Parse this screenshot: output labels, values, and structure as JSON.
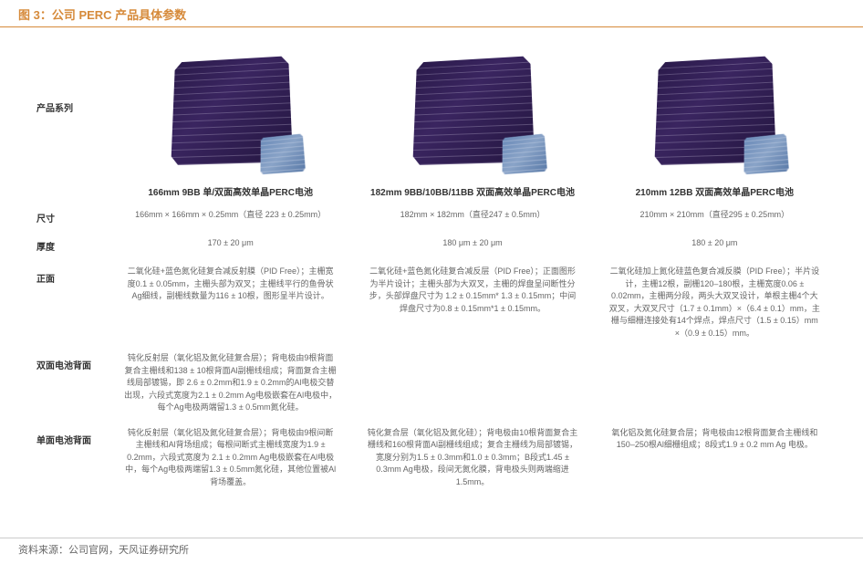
{
  "header": {
    "title": "图 3：公司 PERC 产品具体参数"
  },
  "labels": {
    "series": "产品系列",
    "size": "尺寸",
    "thickness": "厚度",
    "front": "正面",
    "bifacial_back": "双面电池背面",
    "mono_back": "单面电池背面"
  },
  "products": [
    {
      "name": "166mm 9BB 单/双面高效单晶PERC电池",
      "size": "166mm × 166mm × 0.25mm（直径 223 ± 0.25mm）",
      "thickness": "170 ± 20 μm",
      "front": "二氧化硅+蓝色氮化硅复合减反射膜（PID Free）；主栅宽度0.1 ± 0.05mm，主栅头部为双叉；主栅线平行的鱼骨状Ag细线，副栅线数量为116 ± 10根，图形呈半片设计。",
      "bifacial_back": "钝化反射层（氧化铝及氮化硅复合层）；背电极由9根背面复合主栅线和138 ± 10根背面Al副栅线组成；背面复合主栅线局部镀锡，即 2.6 ± 0.2mm和1.9 ± 0.2mm的Al电极交替出现，六段式宽度为2.1 ± 0.2mm Ag电极嵌套在Al电极中，每个Ag电极两端留1.3 ± 0.5mm氮化硅。",
      "mono_back": "钝化反射层（氧化铝及氮化硅复合层）；背电极由9根间断主栅线和Al背场组成；每根间断式主栅线宽度为1.9 ± 0.2mm，六段式宽度为 2.1 ± 0.2mm Ag电极嵌套在Al电极中，每个Ag电极两端留1.3 ± 0.5mm氮化硅，其他位置被Al背场覆盖。"
    },
    {
      "name": "182mm 9BB/10BB/11BB 双面高效单晶PERC电池",
      "size": "182mm × 182mm（直径247 ± 0.5mm）",
      "thickness": "180 μm ± 20 μm",
      "front": "二氧化硅+蓝色氮化硅复合减反层（PID Free）；正面图形为半片设计；主栅头部为大双叉，主栅的焊盘呈间断性分步，头部焊盘尺寸为 1.2 ± 0.15mm* 1.3 ± 0.15mm；中间焊盘尺寸为0.8 ± 0.15mm*1 ± 0.15mm。",
      "bifacial_back": "",
      "mono_back": "钝化复合层（氧化铝及氮化硅）；背电极由10根背面复合主栅线和160根背面Al副栅线组成；复合主栅线为局部镀锡，宽度分别为1.5 ± 0.3mm和1.0 ± 0.3mm；B段式1.45 ± 0.3mm Ag电极，段间无氮化膜，背电极头则两端缩进1.5mm。"
    },
    {
      "name": "210mm 12BB 双面高效单晶PERC电池",
      "size": "210mm × 210mm（直径295 ± 0.25mm）",
      "thickness": "180 ± 20 μm",
      "front": "二氧化硅加上氮化硅蓝色复合减反膜（PID Free）；半片设计，主栅12根，副栅120–180根，主栅宽度0.06 ± 0.02mm，主栅两分段，两头大双叉设计，单根主栅4个大双叉，大双叉尺寸（1.7 ± 0.1mm）×（6.4 ± 0.1）mm，主栅与细栅连接处有14个焊点，焊点尺寸（1.5 ± 0.15）mm ×（0.9 ± 0.15）mm。",
      "bifacial_back": "",
      "mono_back": "氧化铝及氮化硅复合层；背电极由12根背面复合主栅线和150–250根Al细栅组成；8段式1.9 ± 0.2 mm Ag 电极。"
    }
  ],
  "footer": {
    "source": "资料来源：公司官网，天风证券研究所"
  }
}
